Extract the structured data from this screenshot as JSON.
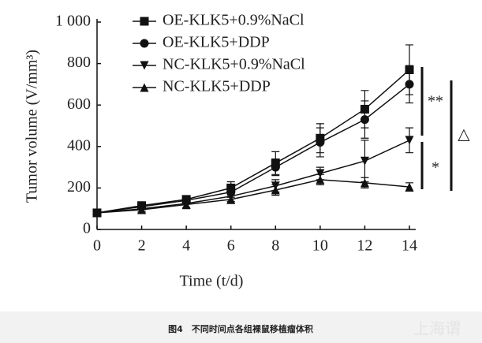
{
  "chart_data": {
    "type": "line",
    "x_label": "Time (t/d)",
    "y_label": "Tumor volume (V/mm³)",
    "x": [
      0,
      2,
      4,
      6,
      8,
      10,
      12,
      14
    ],
    "xlim": [
      0,
      14
    ],
    "xticks": [
      0,
      2,
      4,
      6,
      8,
      10,
      12,
      14
    ],
    "ylim": [
      0,
      1000
    ],
    "yticks": [
      0,
      200,
      400,
      600,
      800,
      {
        "value": 1000,
        "label": "1 000"
      }
    ],
    "series": [
      {
        "name": "OE-KLK5+0.9%NaCl",
        "color": "#111111",
        "marker": "square",
        "values": [
          80,
          115,
          145,
          200,
          320,
          440,
          580,
          770
        ],
        "errors": [
          15,
          15,
          15,
          30,
          55,
          70,
          90,
          120
        ]
      },
      {
        "name": "OE-KLK5+DDP",
        "color": "#111111",
        "marker": "circle",
        "values": [
          80,
          110,
          140,
          180,
          300,
          420,
          530,
          700
        ],
        "errors": [
          15,
          15,
          15,
          25,
          40,
          70,
          90,
          90
        ]
      },
      {
        "name": "NC-KLK5+0.9%NaCl",
        "color": "#111111",
        "marker": "triangle-down",
        "values": [
          80,
          100,
          125,
          160,
          210,
          270,
          330,
          430
        ],
        "errors": [
          15,
          15,
          20,
          25,
          30,
          30,
          100,
          60
        ]
      },
      {
        "name": "NC-KLK5+DDP",
        "color": "#111111",
        "marker": "triangle-up",
        "values": [
          80,
          95,
          120,
          145,
          190,
          240,
          225,
          205
        ],
        "errors": [
          15,
          15,
          20,
          20,
          25,
          25,
          25,
          20
        ]
      }
    ],
    "annotations": [
      "**",
      "*",
      "△"
    ],
    "caption": "图4　不同时间点各组裸鼠移植瘤体积",
    "watermark": "上海谓"
  }
}
